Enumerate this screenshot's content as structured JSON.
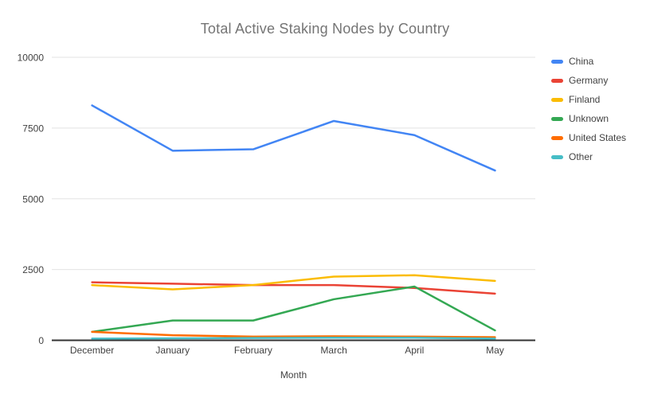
{
  "chart_data": {
    "type": "line",
    "title": "Total Active Staking Nodes by Country",
    "xlabel": "Month",
    "ylabel": "",
    "categories": [
      "December",
      "January",
      "February",
      "March",
      "April",
      "May"
    ],
    "series": [
      {
        "name": "China",
        "color": "#4285F4",
        "values": [
          8300,
          6700,
          6750,
          7750,
          7250,
          6000
        ]
      },
      {
        "name": "Germany",
        "color": "#EA4335",
        "values": [
          2050,
          2000,
          1950,
          1950,
          1850,
          1650
        ]
      },
      {
        "name": "Finland",
        "color": "#FBBC04",
        "values": [
          1950,
          1800,
          1950,
          2250,
          2300,
          2100
        ]
      },
      {
        "name": "Unknown",
        "color": "#34A853",
        "values": [
          300,
          700,
          700,
          1450,
          1900,
          350
        ]
      },
      {
        "name": "United States",
        "color": "#FF6D01",
        "values": [
          300,
          180,
          130,
          140,
          130,
          110
        ]
      },
      {
        "name": "Other",
        "color": "#46BDC6",
        "values": [
          60,
          70,
          80,
          90,
          90,
          60
        ]
      }
    ],
    "ylim": [
      0,
      10000
    ],
    "yticks": [
      0,
      2500,
      5000,
      7500,
      10000
    ],
    "grid": true,
    "legend_position": "right"
  },
  "colors": {
    "background": "#ffffff",
    "gridline": "#e3e3e3",
    "axis_line": "#333333",
    "tick_label": "#424242",
    "axis_title": "#424242",
    "title": "#757575"
  }
}
